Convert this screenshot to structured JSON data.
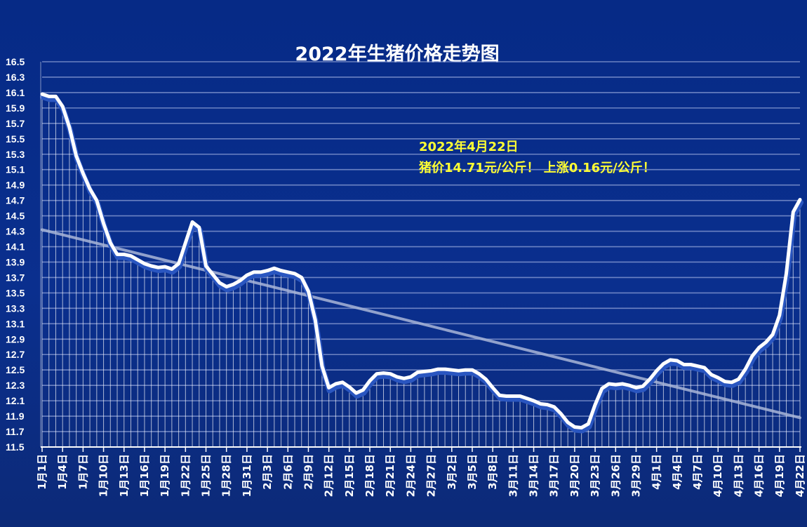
{
  "chart_data": {
    "type": "line",
    "title": "2022年生猪价格走势图",
    "xlabel": "",
    "ylabel": "",
    "ylim": [
      11.5,
      16.5
    ],
    "ytick_step": 0.2,
    "grid": true,
    "trendline": true,
    "categories": [
      "1月1日",
      "1月2日",
      "1月3日",
      "1月4日",
      "1月5日",
      "1月6日",
      "1月7日",
      "1月8日",
      "1月9日",
      "1月10日",
      "1月11日",
      "1月12日",
      "1月13日",
      "1月14日",
      "1月15日",
      "1月16日",
      "1月17日",
      "1月18日",
      "1月19日",
      "1月20日",
      "1月21日",
      "1月22日",
      "1月23日",
      "1月24日",
      "1月25日",
      "1月26日",
      "1月27日",
      "1月28日",
      "1月29日",
      "1月30日",
      "1月31日",
      "2月1日",
      "2月2日",
      "2月3日",
      "2月4日",
      "2月5日",
      "2月6日",
      "2月7日",
      "2月8日",
      "2月9日",
      "2月10日",
      "2月11日",
      "2月12日",
      "2月13日",
      "2月14日",
      "2月15日",
      "2月16日",
      "2月17日",
      "2月18日",
      "2月19日",
      "2月20日",
      "2月21日",
      "2月22日",
      "2月23日",
      "2月24日",
      "2月25日",
      "2月26日",
      "2月27日",
      "2月28日",
      "3月1日",
      "3月2日",
      "3月3日",
      "3月4日",
      "3月5日",
      "3月6日",
      "3月7日",
      "3月8日",
      "3月9日",
      "3月10日",
      "3月11日",
      "3月12日",
      "3月13日",
      "3月14日",
      "3月15日",
      "3月16日",
      "3月17日",
      "3月18日",
      "3月19日",
      "3月20日",
      "3月21日",
      "3月22日",
      "3月23日",
      "3月24日",
      "3月25日",
      "3月26日",
      "3月27日",
      "3月28日",
      "3月29日",
      "3月30日",
      "3月31日",
      "4月1日",
      "4月2日",
      "4月3日",
      "4月4日",
      "4月5日",
      "4月6日",
      "4月7日",
      "4月8日",
      "4月9日",
      "4月10日",
      "4月11日",
      "4月12日",
      "4月13日",
      "4月14日",
      "4月15日",
      "4月16日",
      "4月17日",
      "4月18日",
      "4月19日",
      "4月20日",
      "4月21日",
      "4月22日"
    ],
    "xtick_labels": [
      "1月1日",
      "1月4日",
      "1月7日",
      "1月10日",
      "1月13日",
      "1月16日",
      "1月19日",
      "1月22日",
      "1月25日",
      "1月28日",
      "1月31日",
      "2月3日",
      "2月6日",
      "2月9日",
      "2月12日",
      "2月15日",
      "2月18日",
      "2月21日",
      "2月24日",
      "2月27日",
      "3月2日",
      "3月5日",
      "3月8日",
      "3月11日",
      "3月14日",
      "3月17日",
      "3月20日",
      "3月23日",
      "3月26日",
      "3月29日",
      "4月1日",
      "4月4日",
      "4月7日",
      "4月10日",
      "4月13日",
      "4月16日",
      "4月19日",
      "4月22日"
    ],
    "series": [
      {
        "values": [
          16.08,
          16.05,
          16.05,
          15.92,
          15.65,
          15.28,
          15.05,
          14.85,
          14.7,
          14.4,
          14.15,
          14.0,
          14.0,
          13.98,
          13.93,
          13.88,
          13.85,
          13.83,
          13.84,
          13.81,
          13.88,
          14.15,
          14.42,
          14.35,
          13.85,
          13.74,
          13.63,
          13.58,
          13.61,
          13.66,
          13.73,
          13.77,
          13.77,
          13.79,
          13.82,
          13.79,
          13.77,
          13.75,
          13.7,
          13.52,
          13.15,
          12.55,
          12.27,
          12.32,
          12.34,
          12.28,
          12.2,
          12.24,
          12.36,
          12.45,
          12.46,
          12.45,
          12.41,
          12.39,
          12.41,
          12.47,
          12.48,
          12.49,
          12.51,
          12.51,
          12.5,
          12.49,
          12.5,
          12.5,
          12.45,
          12.38,
          12.27,
          12.17,
          12.16,
          12.16,
          12.16,
          12.13,
          12.1,
          12.06,
          12.05,
          12.02,
          11.93,
          11.82,
          11.76,
          11.75,
          11.8,
          12.05,
          12.26,
          12.32,
          12.31,
          12.32,
          12.3,
          12.27,
          12.29,
          12.38,
          12.49,
          12.58,
          12.63,
          12.62,
          12.57,
          12.57,
          12.55,
          12.53,
          12.44,
          12.4,
          12.35,
          12.34,
          12.38,
          12.51,
          12.68,
          12.79,
          12.86,
          12.96,
          13.21,
          13.75,
          14.55,
          14.71
        ]
      }
    ],
    "trend": {
      "start": 14.32,
      "end": 11.88
    },
    "annotations": [
      "2022年4月22日",
      "猪价14.71元/公斤！ 上涨0.16元/公斤！"
    ]
  },
  "colors": {
    "line": "#ffffff",
    "annotation": "#ffff33",
    "trend": "#a9b6d8",
    "grid": "#8ea0d6"
  }
}
